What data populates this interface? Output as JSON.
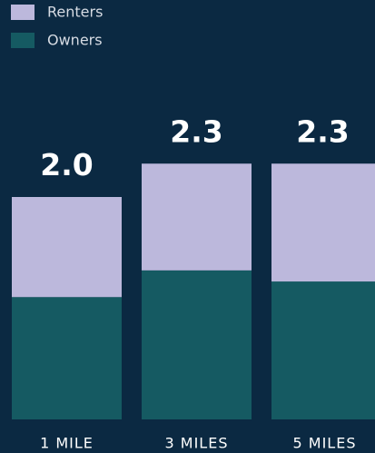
{
  "chart_data": {
    "type": "stacked_bar",
    "categories": [
      "1 MILE",
      "3 MILES",
      "5 MILES"
    ],
    "series": [
      {
        "name": "Renters",
        "color": "#bcb8dc",
        "values": [
          0.9,
          0.96,
          1.06
        ]
      },
      {
        "name": "Owners",
        "color": "#155a62",
        "values": [
          1.1,
          1.34,
          1.24
        ]
      }
    ],
    "totals": [
      2,
      2.3,
      2.3
    ],
    "total_labels": [
      "2.0",
      "2.3",
      "2.3"
    ]
  }
}
